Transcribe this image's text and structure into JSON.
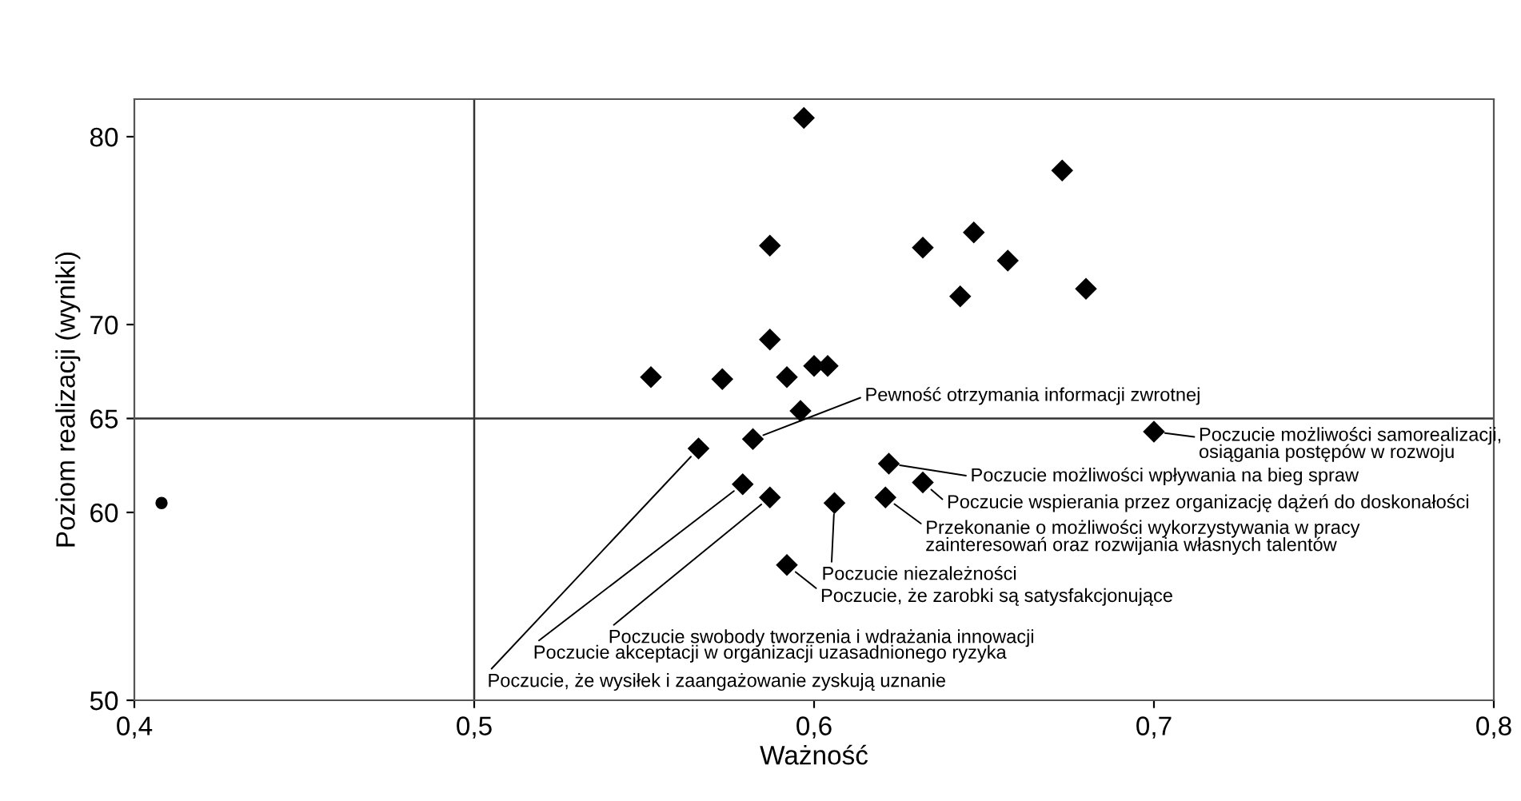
{
  "chart_data": {
    "type": "scatter",
    "xlabel": "Ważność",
    "ylabel": "Poziom realizacji (wyniki)",
    "xlim": [
      0.4,
      0.8
    ],
    "xticks": [
      {
        "value": 0.4,
        "label": "0,4"
      },
      {
        "value": 0.5,
        "label": "0,5"
      },
      {
        "value": 0.6,
        "label": "0,6"
      },
      {
        "value": 0.7,
        "label": "0,7"
      },
      {
        "value": 0.8,
        "label": "0,8"
      }
    ],
    "ylim": [
      50,
      82
    ],
    "yticks": [
      50,
      60,
      65,
      70,
      80
    ],
    "grid": false,
    "legend": false,
    "ref_lines": [
      {
        "axis": "x",
        "value": 0.5,
        "color": "#333333"
      },
      {
        "axis": "y",
        "value": 65,
        "color": "#333333"
      }
    ],
    "series": [
      {
        "color": "#000000",
        "marker": "diamond",
        "x": [
          0.552,
          0.573,
          0.566,
          0.582,
          0.579,
          0.587,
          0.587,
          0.587,
          0.597,
          0.673,
          0.632,
          0.647,
          0.657,
          0.643,
          0.68,
          0.592,
          0.6,
          0.604,
          0.596,
          0.7,
          0.622,
          0.632,
          0.621,
          0.606,
          0.592
        ],
        "values": [
          67.2,
          67.1,
          63.4,
          63.9,
          61.5,
          60.8,
          74.2,
          69.2,
          81.0,
          78.2,
          74.1,
          74.9,
          73.4,
          71.5,
          71.9,
          67.2,
          67.8,
          67.8,
          65.4,
          64.3,
          62.6,
          61.6,
          60.8,
          60.5,
          57.2
        ]
      },
      {
        "color": "#000000",
        "marker": "circle",
        "x": [
          0.408
        ],
        "values": [
          60.5
        ]
      }
    ],
    "annotations": [
      {
        "text": "Pewność otrzymania informacji zwrotnej",
        "x": 0.582,
        "y": 63.9
      },
      {
        "text": "Poczucie możliwości samorealizacji,\nosiągania postępów w rozwoju",
        "x": 0.7,
        "y": 64.3
      },
      {
        "text": "Poczucie możliwości wpływania na bieg spraw",
        "x": 0.622,
        "y": 62.6
      },
      {
        "text": "Poczucie wspierania przez organizację dążeń do doskonałości",
        "x": 0.632,
        "y": 61.6
      },
      {
        "text": "Przekonanie o możliwości wykorzystywania w pracy\nzainteresowań oraz rozwijania własnych talentów",
        "x": 0.621,
        "y": 60.8
      },
      {
        "text": "Poczucie niezależności",
        "x": 0.606,
        "y": 60.5
      },
      {
        "text": "Poczucie, że zarobki są satysfakcjonujące",
        "x": 0.592,
        "y": 57.2
      },
      {
        "text": "Poczucie swobody tworzenia i wdrażania innowacji",
        "x": 0.587,
        "y": 60.8
      },
      {
        "text": "Poczucie akceptacji w organizacji uzasadnionego ryzyka",
        "x": 0.579,
        "y": 61.5
      },
      {
        "text": "Poczucie, że wysiłek i zaangażowanie zyskują uznanie",
        "x": 0.566,
        "y": 63.4
      }
    ]
  }
}
